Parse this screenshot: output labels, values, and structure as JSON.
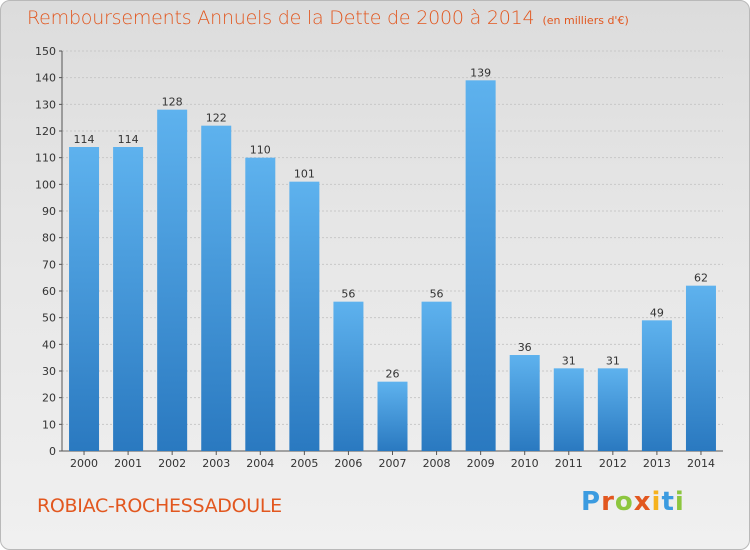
{
  "header": {
    "title": "Remboursements Annuels de la Dette de 2000 à 2014",
    "unit": "(en milliers d'€)"
  },
  "footer": {
    "commune": "ROBIAC-ROCHESSADOULE",
    "logo_letters": [
      "P",
      "r",
      "o",
      "x",
      "i",
      "t",
      "i"
    ],
    "logo_colors": [
      "#3b9be0",
      "#e2571f",
      "#8dc63f",
      "#e2571f",
      "#f6b21c",
      "#3b9be0",
      "#8dc63f"
    ]
  },
  "colors": {
    "bar_top": "#5eb2ee",
    "bar_bottom": "#2a79c0",
    "accent": "#e2571f"
  },
  "chart_data": {
    "type": "bar",
    "title": "Remboursements Annuels de la Dette de 2000 à 2014",
    "categories": [
      "2000",
      "2001",
      "2002",
      "2003",
      "2004",
      "2005",
      "2006",
      "2007",
      "2008",
      "2009",
      "2010",
      "2011",
      "2012",
      "2013",
      "2014"
    ],
    "values": [
      114,
      114,
      128,
      122,
      110,
      101,
      56,
      26,
      56,
      139,
      36,
      31,
      31,
      49,
      62
    ],
    "ylim": [
      0,
      150
    ],
    "yticks": [
      0,
      10,
      20,
      30,
      40,
      50,
      60,
      70,
      80,
      90,
      100,
      110,
      120,
      130,
      140,
      150
    ],
    "grid": true,
    "xlabel": "",
    "ylabel": ""
  }
}
